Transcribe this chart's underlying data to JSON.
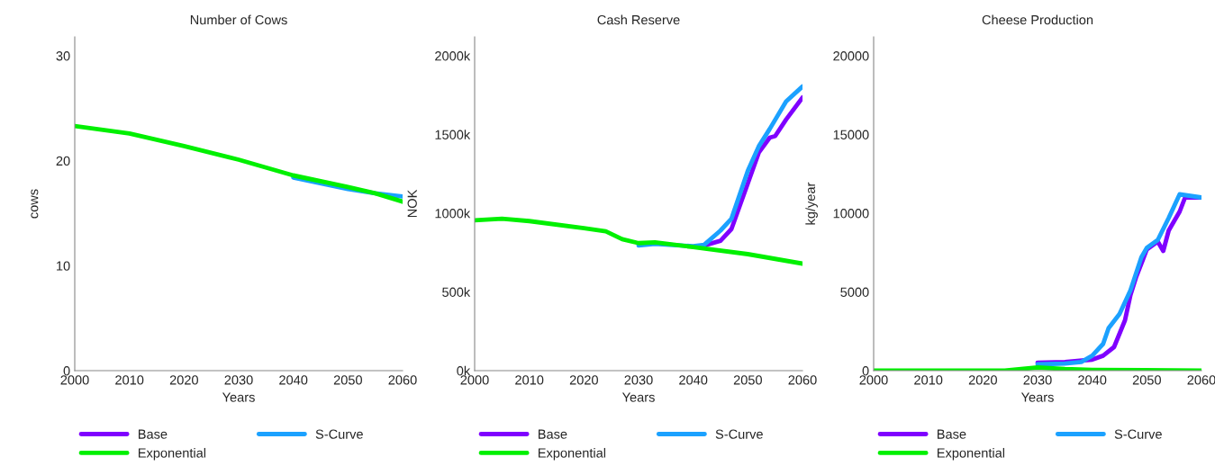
{
  "chart_data": [
    {
      "type": "line",
      "title": "Number of Cows",
      "xlabel": "Years",
      "ylabel": "cows",
      "xlim": [
        2000,
        2060
      ],
      "xticks": [
        2000,
        2010,
        2020,
        2030,
        2040,
        2050,
        2060
      ],
      "ylim": [
        0,
        31.8
      ],
      "yticks": [
        0,
        10,
        20,
        30
      ],
      "grid": false,
      "legend": "bottom",
      "line_style": "solid",
      "marker": "none",
      "series": [
        {
          "name": "Base",
          "color": "#7f00ff"
        },
        {
          "name": "S-Curve",
          "color": "#1ba1ff",
          "x": [
            2040,
            2050,
            2055,
            2060
          ],
          "values": [
            18.4,
            17.3,
            16.9,
            16.6
          ]
        },
        {
          "name": "Exponential",
          "color": "#00f000",
          "x": [
            2000,
            2010,
            2020,
            2030,
            2040,
            2050,
            2055,
            2060
          ],
          "values": [
            23.3,
            22.6,
            21.4,
            20.1,
            18.6,
            17.5,
            16.9,
            16.1
          ]
        }
      ]
    },
    {
      "type": "line",
      "title": "Cash Reserve",
      "xlabel": "Years",
      "ylabel": "NOK",
      "xlim": [
        2000,
        2060
      ],
      "xticks": [
        2000,
        2010,
        2020,
        2030,
        2040,
        2050,
        2060
      ],
      "ylim": [
        0,
        2120
      ],
      "yticks": [
        {
          "value": 0,
          "label": "0k"
        },
        {
          "value": 500,
          "label": "500k"
        },
        {
          "value": 1000,
          "label": "1000k"
        },
        {
          "value": 1500,
          "label": "1500k"
        },
        {
          "value": 2000,
          "label": "2000k"
        }
      ],
      "grid": false,
      "legend": "bottom",
      "line_style": "solid",
      "marker": "none",
      "series": [
        {
          "name": "Base",
          "color": "#7f00ff",
          "x": [
            2042,
            2045,
            2047,
            2050,
            2052,
            2054,
            2055,
            2057,
            2060
          ],
          "values": [
            795,
            825,
            900,
            1190,
            1385,
            1480,
            1490,
            1595,
            1735
          ]
        },
        {
          "name": "S-Curve",
          "color": "#1ba1ff",
          "x": [
            2030,
            2033,
            2040,
            2042,
            2045,
            2047,
            2050,
            2052,
            2054,
            2057,
            2060
          ],
          "values": [
            795,
            805,
            790,
            799,
            890,
            965,
            1270,
            1425,
            1535,
            1710,
            1805
          ]
        },
        {
          "name": "Exponential",
          "color": "#00f000",
          "x": [
            2000,
            2005,
            2010,
            2020,
            2024,
            2027,
            2030,
            2033,
            2040,
            2050,
            2060
          ],
          "values": [
            955,
            965,
            950,
            905,
            885,
            835,
            810,
            815,
            785,
            740,
            680
          ]
        }
      ]
    },
    {
      "type": "line",
      "title": "Cheese Production",
      "xlabel": "Years",
      "ylabel": "kg/year",
      "xlim": [
        2000,
        2060
      ],
      "xticks": [
        2000,
        2010,
        2020,
        2030,
        2040,
        2050,
        2060
      ],
      "ylim": [
        0,
        21200
      ],
      "yticks": [
        0,
        5000,
        10000,
        15000,
        20000
      ],
      "grid": false,
      "legend": "bottom",
      "line_style": "solid",
      "marker": "none",
      "series": [
        {
          "name": "Base",
          "color": "#7f00ff",
          "x": [
            2030,
            2035,
            2040,
            2042,
            2044,
            2046,
            2047,
            2048,
            2050,
            2052,
            2053,
            2054,
            2056,
            2057,
            2060
          ],
          "values": [
            500,
            550,
            700,
            950,
            1500,
            3200,
            4800,
            5900,
            7700,
            8200,
            7600,
            8900,
            10100,
            11000,
            11000
          ]
        },
        {
          "name": "S-Curve",
          "color": "#1ba1ff",
          "x": [
            2030,
            2035,
            2038,
            2040,
            2042,
            2043,
            2045,
            2047,
            2049,
            2050,
            2052,
            2054,
            2056,
            2060
          ],
          "values": [
            400,
            450,
            550,
            950,
            1700,
            2700,
            3600,
            5100,
            7200,
            7800,
            8300,
            9700,
            11200,
            11000
          ]
        },
        {
          "name": "Exponential",
          "color": "#00f000",
          "x": [
            2000,
            2024,
            2027,
            2030,
            2035,
            2040,
            2060
          ],
          "values": [
            0,
            0,
            100,
            200,
            100,
            50,
            0
          ]
        }
      ]
    }
  ]
}
